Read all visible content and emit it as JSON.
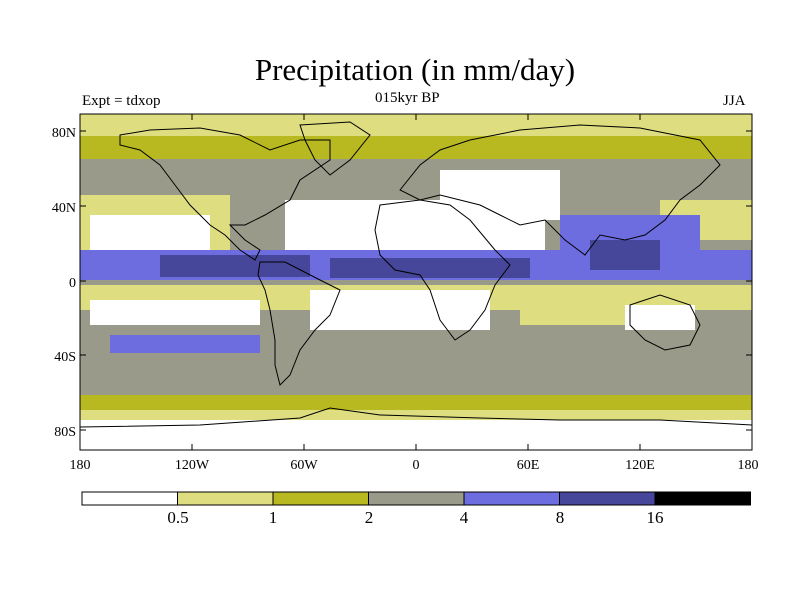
{
  "title": "Precipitation (in mm/day)",
  "subtitle_left": "Expt = tdxop",
  "subtitle_center": "015kyr BP",
  "subtitle_right": "JJA",
  "lat_labels": [
    "80N",
    "40N",
    "0",
    "40S",
    "80S"
  ],
  "lon_labels": [
    "180",
    "120W",
    "60W",
    "0",
    "60E",
    "120E",
    "180"
  ],
  "colorbar": {
    "colors": [
      "#ffffff",
      "#dede80",
      "#b8b820",
      "#9a9a8a",
      "#6d6de0",
      "#46469a",
      "#000000"
    ],
    "tick_labels": [
      "0.5",
      "1",
      "2",
      "4",
      "8",
      "16"
    ]
  }
}
